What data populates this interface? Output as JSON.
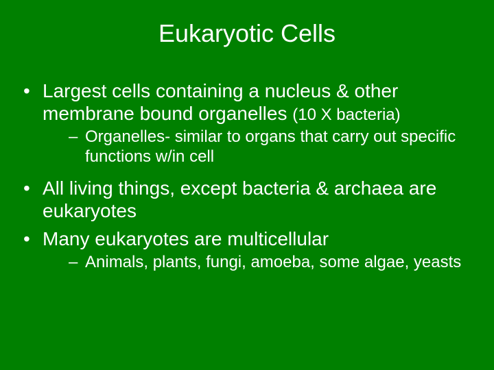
{
  "slide": {
    "background_color": "#008000",
    "text_color": "#ffffff",
    "font_family": "Arial",
    "title": "Eukaryotic Cells",
    "title_fontsize": 36,
    "bullets": [
      {
        "text_main": "Largest cells containing a nucleus & other membrane bound organelles ",
        "text_note": "(10 X bacteria)",
        "fontsize": 28,
        "note_fontsize": 24,
        "sub": [
          {
            "text": "Organelles- similar to organs that carry out specific functions w/in cell",
            "fontsize": 24
          }
        ]
      },
      {
        "text_main": "All living things, except bacteria & archaea are eukaryotes",
        "fontsize": 28,
        "sub": []
      },
      {
        "text_main": "Many eukaryotes are multicellular",
        "fontsize": 28,
        "sub": [
          {
            "text": "Animals, plants, fungi, amoeba, some algae, yeasts",
            "fontsize": 24
          }
        ]
      }
    ]
  }
}
